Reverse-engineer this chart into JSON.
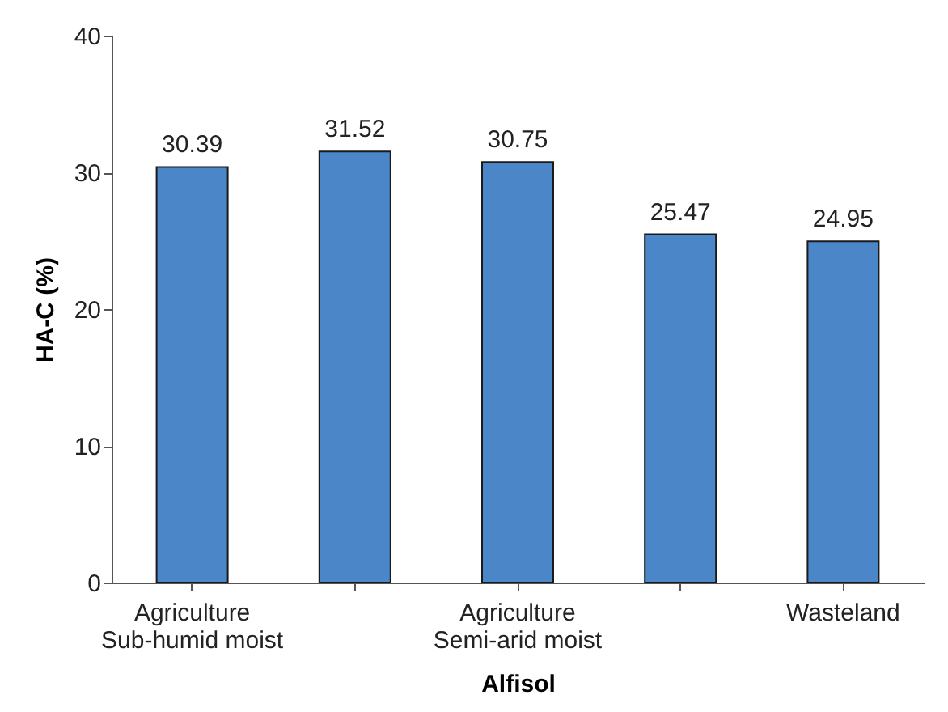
{
  "chart_data": {
    "type": "bar",
    "xlabel": "Alfisol",
    "ylabel": "HA-C (%)",
    "categories": [
      "Agriculture\nSub-humid moist",
      null,
      "Agriculture\nSemi-arid moist",
      null,
      "Wasteland"
    ],
    "values": [
      30.39,
      31.52,
      30.75,
      25.47,
      24.95
    ],
    "color": "#4a86c8",
    "ylim": [
      0,
      40
    ],
    "yticks": [
      0,
      10,
      20,
      30,
      40
    ],
    "grid": false,
    "data_labels": true
  }
}
